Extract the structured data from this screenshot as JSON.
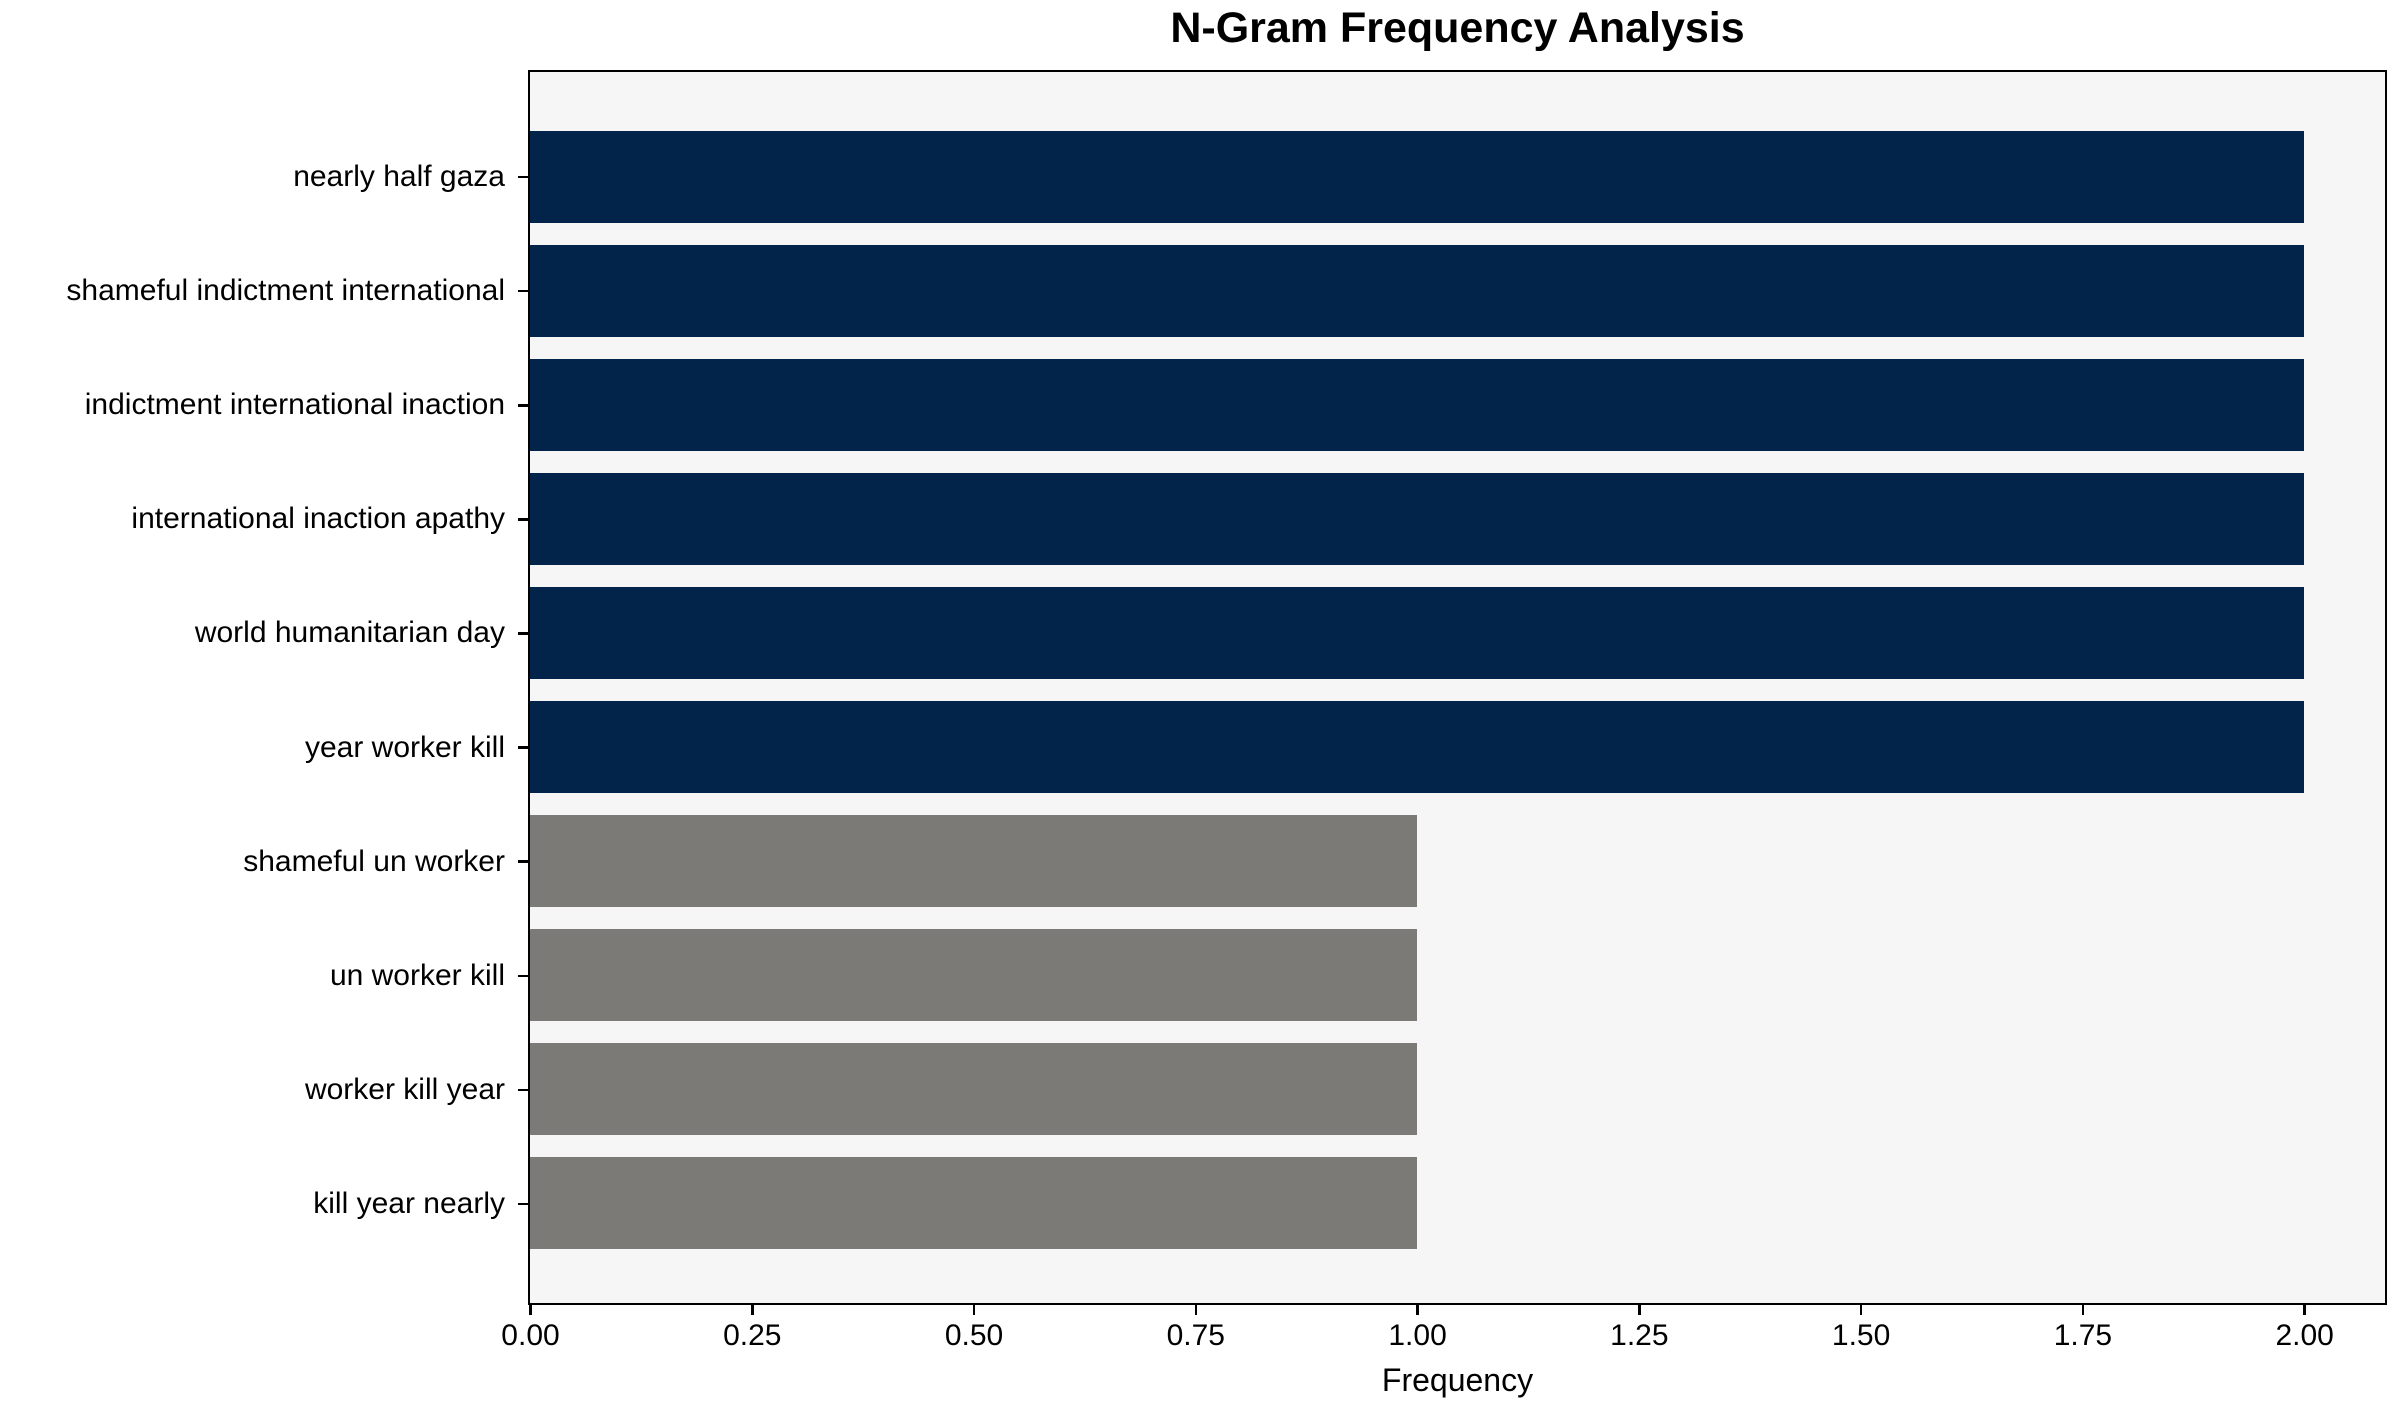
{
  "chart_data": {
    "type": "bar",
    "orientation": "horizontal",
    "title": "N-Gram Frequency Analysis",
    "xlabel": "Frequency",
    "ylabel": "",
    "categories": [
      "nearly half gaza",
      "shameful indictment international",
      "indictment international inaction",
      "international inaction apathy",
      "world humanitarian day",
      "year worker kill",
      "shameful un worker",
      "un worker kill",
      "worker kill year",
      "kill year nearly"
    ],
    "series": [
      {
        "name": "Frequency",
        "values": [
          2,
          2,
          2,
          2,
          2,
          2,
          1,
          1,
          1,
          1
        ]
      }
    ],
    "bar_colors": [
      "#02244b",
      "#02244b",
      "#02244b",
      "#02244b",
      "#02244b",
      "#02244b",
      "#7b7a77",
      "#7b7a77",
      "#7b7a77",
      "#7b7a77"
    ],
    "xlim": [
      0,
      2.09
    ],
    "xticks": [
      {
        "value": 0.0,
        "label": "0.00"
      },
      {
        "value": 0.25,
        "label": "0.25"
      },
      {
        "value": 0.5,
        "label": "0.50"
      },
      {
        "value": 0.75,
        "label": "0.75"
      },
      {
        "value": 1.0,
        "label": "1.00"
      },
      {
        "value": 1.25,
        "label": "1.25"
      },
      {
        "value": 1.5,
        "label": "1.50"
      },
      {
        "value": 1.75,
        "label": "1.75"
      },
      {
        "value": 2.0,
        "label": "2.00"
      }
    ],
    "grid": false,
    "legend": null,
    "colors": {
      "frequency_2_bar": "#02244b",
      "frequency_1_bar": "#7b7a77",
      "plot_background": "#f6f6f6",
      "figure_background": "#ffffff",
      "axis": "#000000",
      "text": "#000000"
    }
  }
}
